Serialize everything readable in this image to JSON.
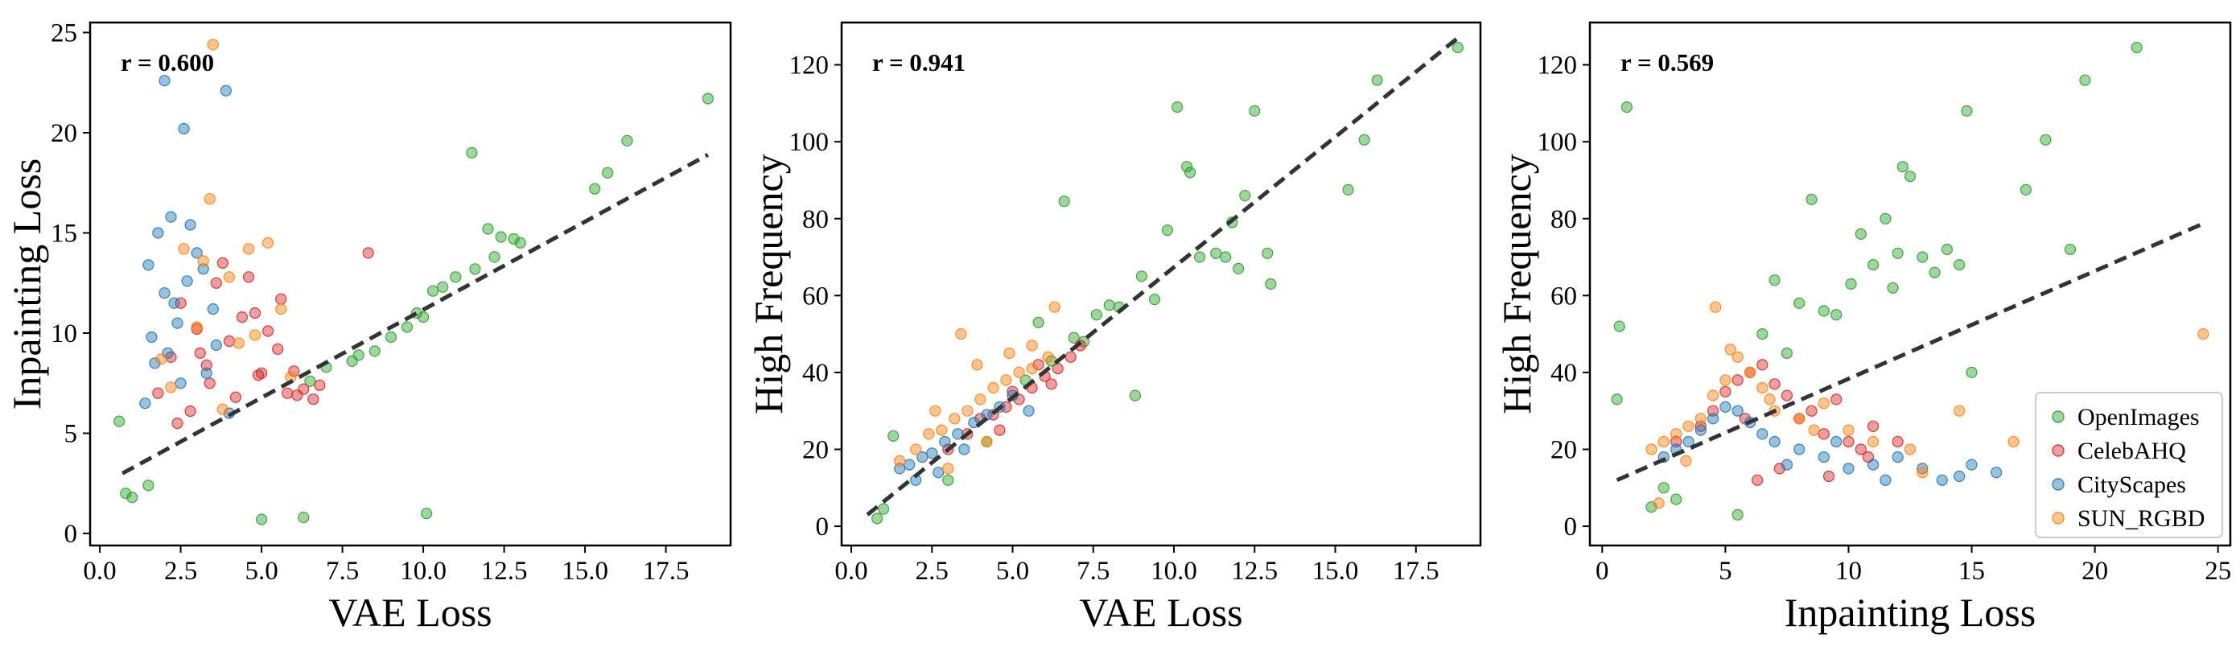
{
  "legend": {
    "position": "lower-right",
    "entries": [
      {
        "name": "OpenImages",
        "color": "#2ca02c"
      },
      {
        "name": "CelebAHQ",
        "color": "#d62728"
      },
      {
        "name": "CityScapes",
        "color": "#1f77b4"
      },
      {
        "name": "SUN_RGBD",
        "color": "#ff7f0e"
      }
    ]
  },
  "style": {
    "point_opacity": 0.45,
    "fit_line_color": "#333333",
    "axes_color": "#000000"
  },
  "chart_data": [
    {
      "type": "scatter",
      "title": "",
      "xlabel": "VAE Loss",
      "ylabel": "Inpainting Loss",
      "annotation": "r = 0.600",
      "xlim": [
        -0.3,
        19.5
      ],
      "ylim": [
        -0.6,
        25.5
      ],
      "xticks": [
        0.0,
        2.5,
        5.0,
        7.5,
        10.0,
        12.5,
        15.0,
        17.5
      ],
      "xtick_labels": [
        "0.0",
        "2.5",
        "5.0",
        "7.5",
        "10.0",
        "12.5",
        "15.0",
        "17.5"
      ],
      "yticks": [
        0,
        5,
        10,
        15,
        20,
        25
      ],
      "ytick_labels": [
        "0",
        "5",
        "10",
        "15",
        "20",
        "25"
      ],
      "fit_line": [
        [
          0.7,
          3.0
        ],
        [
          18.8,
          18.9
        ]
      ],
      "series": [
        {
          "name": "OpenImages",
          "x": [
            0.6,
            0.8,
            1.0,
            1.5,
            5.0,
            6.3,
            10.1,
            11.5,
            12.0,
            12.4,
            13.0,
            15.3,
            15.7,
            16.3,
            18.8,
            7.0,
            7.8,
            8.5,
            9.0,
            9.5,
            10.0,
            10.3,
            10.6,
            11.6,
            12.8,
            8.0,
            6.5,
            9.8,
            11.0,
            12.2
          ],
          "y": [
            5.6,
            2.0,
            1.8,
            2.4,
            0.7,
            0.8,
            1.0,
            19.0,
            15.2,
            14.8,
            14.5,
            17.2,
            18.0,
            19.6,
            21.7,
            8.3,
            8.6,
            9.1,
            9.8,
            10.3,
            10.8,
            12.1,
            12.3,
            13.2,
            14.7,
            8.9,
            7.6,
            11.0,
            12.8,
            13.8
          ]
        },
        {
          "name": "CelebAHQ",
          "x": [
            1.8,
            2.2,
            2.5,
            3.0,
            3.3,
            3.6,
            4.0,
            4.4,
            4.8,
            5.2,
            5.5,
            6.0,
            6.3,
            8.3,
            2.8,
            3.4,
            4.2,
            5.0,
            5.8,
            6.6,
            3.8,
            4.6,
            2.4,
            5.6,
            6.1,
            3.1,
            4.9,
            6.8
          ],
          "y": [
            7.0,
            8.8,
            11.5,
            10.2,
            8.4,
            12.5,
            9.6,
            10.8,
            11.0,
            10.1,
            9.2,
            8.1,
            7.2,
            14.0,
            6.1,
            7.5,
            6.8,
            8.0,
            7.0,
            6.7,
            13.5,
            12.8,
            5.5,
            11.7,
            6.9,
            9.0,
            7.9,
            7.4
          ]
        },
        {
          "name": "CityScapes",
          "x": [
            1.5,
            1.8,
            2.0,
            2.2,
            2.6,
            2.8,
            3.0,
            3.5,
            3.9,
            1.6,
            2.0,
            2.4,
            3.2,
            1.7,
            2.1,
            2.5,
            3.3,
            4.0,
            1.4,
            2.3,
            2.7,
            3.6
          ],
          "y": [
            13.4,
            15.0,
            22.6,
            15.8,
            20.2,
            15.4,
            14.0,
            11.2,
            22.1,
            9.8,
            12.0,
            10.5,
            13.2,
            8.5,
            9.0,
            7.5,
            8.0,
            6.0,
            6.5,
            11.5,
            12.6,
            9.4
          ]
        },
        {
          "name": "SUN_RGBD",
          "x": [
            3.5,
            3.4,
            2.6,
            3.2,
            4.0,
            4.6,
            5.2,
            5.6,
            3.0,
            4.3,
            1.9,
            2.2,
            4.8,
            5.9,
            3.8
          ],
          "y": [
            24.4,
            16.7,
            14.2,
            13.6,
            12.8,
            14.2,
            14.5,
            11.2,
            10.3,
            9.5,
            8.7,
            7.3,
            9.9,
            7.8,
            6.2
          ]
        }
      ]
    },
    {
      "type": "scatter",
      "title": "",
      "xlabel": "VAE Loss",
      "ylabel": "High Frequency",
      "annotation": "r = 0.941",
      "xlim": [
        -0.3,
        19.5
      ],
      "ylim": [
        -5,
        131
      ],
      "xticks": [
        0.0,
        2.5,
        5.0,
        7.5,
        10.0,
        12.5,
        15.0,
        17.5
      ],
      "xtick_labels": [
        "0.0",
        "2.5",
        "5.0",
        "7.5",
        "10.0",
        "12.5",
        "15.0",
        "17.5"
      ],
      "yticks": [
        0,
        20,
        40,
        60,
        80,
        100,
        120
      ],
      "ytick_labels": [
        "0",
        "20",
        "40",
        "60",
        "80",
        "100",
        "120"
      ],
      "fit_line": [
        [
          0.5,
          3.0
        ],
        [
          18.8,
          127.0
        ]
      ],
      "series": [
        {
          "name": "OpenImages",
          "x": [
            0.8,
            1.0,
            1.3,
            5.8,
            6.6,
            8.3,
            8.8,
            9.0,
            10.1,
            10.4,
            10.5,
            10.8,
            11.3,
            11.8,
            12.0,
            12.5,
            12.9,
            13.0,
            15.4,
            15.9,
            16.3,
            18.8,
            7.2,
            7.6,
            8.0,
            9.4,
            9.8,
            11.6,
            12.2,
            6.2,
            5.4,
            3.0,
            4.2,
            6.9
          ],
          "y": [
            2.0,
            4.5,
            23.5,
            53.0,
            84.5,
            57.0,
            34.0,
            65.0,
            109.0,
            93.5,
            92.0,
            70.0,
            71.0,
            79.0,
            67.0,
            108.0,
            71.0,
            63.0,
            87.5,
            100.5,
            116.0,
            124.5,
            48.0,
            55.0,
            57.5,
            59.0,
            77.0,
            70.0,
            86.0,
            43.0,
            38.0,
            12.0,
            22.0,
            49.0
          ]
        },
        {
          "name": "CelebAHQ",
          "x": [
            3.0,
            3.6,
            4.0,
            4.4,
            4.8,
            5.2,
            5.6,
            6.0,
            6.4,
            6.8,
            7.1,
            5.0,
            5.8,
            4.6,
            6.2
          ],
          "y": [
            20.0,
            24.0,
            28.0,
            29.0,
            31.0,
            33.0,
            36.0,
            39.0,
            41.0,
            44.0,
            47.0,
            35.0,
            42.0,
            25.0,
            37.0
          ]
        },
        {
          "name": "CityScapes",
          "x": [
            1.5,
            1.8,
            2.2,
            2.5,
            2.9,
            3.3,
            3.8,
            4.2,
            4.6,
            5.0,
            5.5,
            2.0,
            2.7,
            3.5
          ],
          "y": [
            15.0,
            16.0,
            18.0,
            19.0,
            22.0,
            24.0,
            27.0,
            29.0,
            31.0,
            34.0,
            30.0,
            12.0,
            14.0,
            20.0
          ]
        },
        {
          "name": "SUN_RGBD",
          "x": [
            1.5,
            2.0,
            2.4,
            2.8,
            3.2,
            3.6,
            4.0,
            4.4,
            4.8,
            5.2,
            5.6,
            6.1,
            3.4,
            3.9,
            4.9,
            5.6,
            6.3,
            2.6,
            3.0,
            4.2
          ],
          "y": [
            17.0,
            20.0,
            24.0,
            25.0,
            28.0,
            30.0,
            33.0,
            36.0,
            38.0,
            40.0,
            41.0,
            44.0,
            50.0,
            42.0,
            45.0,
            47.0,
            57.0,
            30.0,
            15.0,
            22.0
          ]
        }
      ]
    },
    {
      "type": "scatter",
      "title": "",
      "xlabel": "Inpainting Loss",
      "ylabel": "High Frequency",
      "annotation": "r = 0.569",
      "xlim": [
        -0.5,
        25.5
      ],
      "ylim": [
        -5,
        131
      ],
      "xticks": [
        0,
        5,
        10,
        15,
        20,
        25
      ],
      "xtick_labels": [
        "0",
        "5",
        "10",
        "15",
        "20",
        "25"
      ],
      "yticks": [
        0,
        20,
        40,
        60,
        80,
        100,
        120
      ],
      "ytick_labels": [
        "0",
        "20",
        "40",
        "60",
        "80",
        "100",
        "120"
      ],
      "fit_line": [
        [
          0.6,
          12.0
        ],
        [
          24.5,
          79.0
        ]
      ],
      "series": [
        {
          "name": "OpenImages",
          "x": [
            0.6,
            0.7,
            1.0,
            2.0,
            2.5,
            3.0,
            5.5,
            7.0,
            8.0,
            8.5,
            9.0,
            9.5,
            10.1,
            11.0,
            11.5,
            12.0,
            12.2,
            12.5,
            13.0,
            13.5,
            14.0,
            14.5,
            14.8,
            15.0,
            17.2,
            18.0,
            19.0,
            19.6,
            21.7,
            6.5,
            7.5,
            10.5,
            11.8
          ],
          "y": [
            33.0,
            52.0,
            109.0,
            5.0,
            10.0,
            7.0,
            3.0,
            64.0,
            58.0,
            85.0,
            56.0,
            55.0,
            63.0,
            68.0,
            80.0,
            71.0,
            93.5,
            91.0,
            70.0,
            66.0,
            72.0,
            68.0,
            108.0,
            40.0,
            87.5,
            100.5,
            72.0,
            116.0,
            124.5,
            50.0,
            45.0,
            76.0,
            62.0
          ]
        },
        {
          "name": "CelebAHQ",
          "x": [
            3.0,
            4.0,
            4.5,
            5.0,
            5.5,
            6.0,
            6.5,
            7.0,
            7.5,
            8.0,
            8.5,
            9.0,
            9.5,
            10.0,
            10.5,
            11.0,
            12.0,
            6.3,
            7.2,
            9.2,
            10.8,
            5.8
          ],
          "y": [
            22.0,
            26.0,
            30.0,
            35.0,
            38.0,
            40.0,
            42.0,
            37.0,
            34.0,
            28.0,
            30.0,
            24.0,
            33.0,
            22.0,
            20.0,
            26.0,
            22.0,
            12.0,
            15.0,
            13.0,
            18.0,
            28.0
          ]
        },
        {
          "name": "CityScapes",
          "x": [
            2.5,
            3.0,
            3.5,
            4.0,
            4.5,
            5.0,
            5.5,
            6.0,
            6.5,
            7.0,
            8.0,
            9.0,
            10.0,
            11.0,
            12.0,
            13.0,
            13.8,
            14.5,
            15.0,
            16.0,
            7.5,
            9.5,
            11.5
          ],
          "y": [
            18.0,
            20.0,
            22.0,
            25.0,
            28.0,
            31.0,
            30.0,
            27.0,
            24.0,
            22.0,
            20.0,
            18.0,
            15.0,
            16.0,
            18.0,
            15.0,
            12.0,
            13.0,
            16.0,
            14.0,
            16.0,
            22.0,
            12.0
          ]
        },
        {
          "name": "SUN_RGBD",
          "x": [
            2.0,
            2.5,
            3.0,
            3.5,
            4.0,
            4.5,
            5.0,
            5.5,
            6.0,
            6.5,
            7.0,
            8.0,
            9.0,
            10.0,
            11.0,
            12.5,
            13.0,
            14.5,
            16.7,
            24.4,
            4.6,
            5.2,
            3.4,
            6.8,
            8.6,
            2.3
          ],
          "y": [
            20.0,
            22.0,
            24.0,
            26.0,
            28.0,
            34.0,
            38.0,
            44.0,
            40.0,
            36.0,
            30.0,
            28.0,
            32.0,
            25.0,
            22.0,
            20.0,
            14.0,
            30.0,
            22.0,
            50.0,
            57.0,
            46.0,
            17.0,
            33.0,
            25.0,
            6.0
          ]
        }
      ]
    }
  ]
}
